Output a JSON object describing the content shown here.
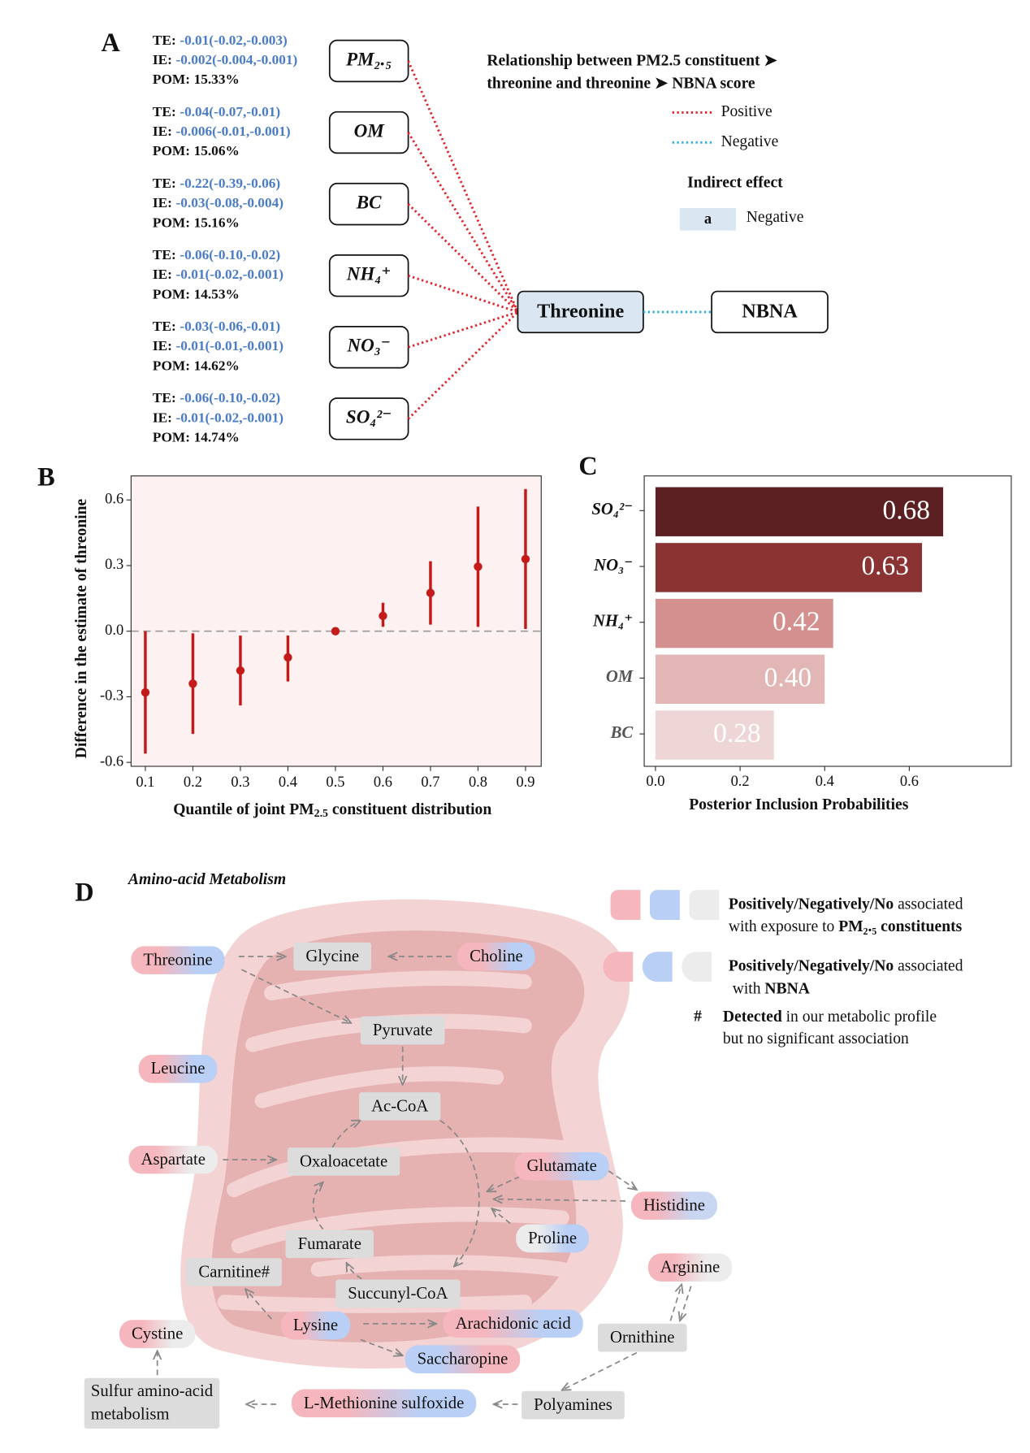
{
  "panel_labels": [
    "A",
    "B",
    "C",
    "D"
  ],
  "panel_a": {
    "rows": [
      {
        "node": "PM₂.₅",
        "te": "-0.01(-0.02,-0.003)",
        "ie": "-0.002(-0.004,-0.001)",
        "pom": "15.33%"
      },
      {
        "node": "OM",
        "te": "-0.04(-0.07,-0.01)",
        "ie": "-0.006(-0.01,-0.001)",
        "pom": "15.06%"
      },
      {
        "node": "BC",
        "te": "-0.22(-0.39,-0.06)",
        "ie": "-0.03(-0.08,-0.004)",
        "pom": "15.16%"
      },
      {
        "node": "NH₄⁺",
        "te": "-0.06(-0.10,-0.02)",
        "ie": "-0.01(-0.02,-0.001)",
        "pom": "14.53%"
      },
      {
        "node": "NO₃⁻",
        "te": "-0.03(-0.06,-0.01)",
        "ie": "-0.01(-0.01,-0.001)",
        "pom": "14.62%"
      },
      {
        "node": "SO₄²⁻",
        "te": "-0.06(-0.10,-0.02)",
        "ie": "-0.01(-0.02,-0.001)",
        "pom": "14.74%"
      }
    ],
    "te_label": "TE:",
    "ie_label": "IE:",
    "pom_label": "POM:",
    "mediator": "Threonine",
    "outcome": "NBNA",
    "legend_title": [
      "Relationship between PM2.5 constituent ➤",
      "threonine and threonine ➤ NBNA score"
    ],
    "legend_positive": "Positive",
    "legend_negative": "Negative",
    "positive_color": "#e0242a",
    "negative_color": "#2aaee0",
    "indirect_title": "Indirect effect",
    "indirect_key": "a",
    "indirect_label": "Negative",
    "indirect_color": "#dae6f2"
  },
  "chart_data": [
    {
      "type": "errorbar",
      "x": [
        0.1,
        0.2,
        0.3,
        0.4,
        0.5,
        0.6,
        0.7,
        0.8,
        0.9
      ],
      "values": [
        -0.28,
        -0.24,
        -0.18,
        -0.12,
        0.0,
        0.07,
        0.175,
        0.295,
        0.33
      ],
      "lower": [
        -0.56,
        -0.47,
        -0.34,
        -0.23,
        0.0,
        0.02,
        0.03,
        0.02,
        0.01
      ],
      "upper": [
        0.0,
        -0.01,
        -0.02,
        -0.02,
        0.0,
        0.13,
        0.32,
        0.57,
        0.65
      ],
      "color": "#c41a1a",
      "xlim": [
        0.07,
        0.933
      ],
      "ylim": [
        -0.618,
        0.71
      ],
      "xticks": [
        0.1,
        0.2,
        0.3,
        0.4,
        0.5,
        0.6,
        0.7,
        0.8,
        0.9
      ],
      "yticks": [
        -0.6,
        -0.3,
        {
          "value": 0,
          "label": "0.0"
        },
        0.3,
        0.6
      ],
      "reference_line": 0,
      "y_label": "Difference in the estimate of threonine",
      "x_label": [
        "Quantile of joint PM",
        "2.5",
        " constituent distribution"
      ]
    },
    {
      "type": "hbar",
      "categories": [
        "SO₄²⁻",
        "NO₃⁻",
        "NH₄⁺",
        "OM",
        "BC"
      ],
      "values": [
        0.68,
        0.63,
        0.42,
        0.4,
        0.28
      ],
      "value_labels": [
        "0.68",
        "0.63",
        "0.42",
        "0.40",
        "0.28"
      ],
      "colors": [
        "#5c1f22",
        "#8b3232",
        "#d48f8f",
        "#e3b6b6",
        "#efd6d6"
      ],
      "xlim": [
        -0.0266,
        0.841
      ],
      "xticks": [
        {
          "value": 0,
          "label": "0.0"
        },
        0.2,
        0.4,
        0.6
      ],
      "x_label": "Posterior Inclusion Probabilities"
    }
  ],
  "panel_d": {
    "title": "Amino-acid Metabolism",
    "nodes": [
      {
        "label": "Threonine",
        "fill": [
          "#f5b7bd",
          "#b9cff5"
        ]
      },
      {
        "label": "Glycine",
        "fill": [
          "#dcdcdc"
        ]
      },
      {
        "label": "Choline",
        "fill": [
          "#f5b7bd",
          "#b9cff5"
        ]
      },
      {
        "label": "Pyruvate",
        "fill": [
          "#dcdcdc"
        ]
      },
      {
        "label": "Leucine",
        "fill": [
          "#f5b7bd",
          "#b9cff5"
        ]
      },
      {
        "label": "Ac-CoA",
        "fill": [
          "#dcdcdc"
        ]
      },
      {
        "label": "Aspartate",
        "fill": [
          "#f5b7bd",
          "#ececec"
        ]
      },
      {
        "label": "Oxaloacetate",
        "fill": [
          "#dcdcdc"
        ]
      },
      {
        "label": "Glutamate",
        "fill": [
          "#f5b7bd",
          "#b9cff5"
        ]
      },
      {
        "label": "Histidine",
        "fill": [
          "#f5b7bd",
          "#c9d6f2"
        ]
      },
      {
        "label": "Proline",
        "fill": [
          "#ececec",
          "#b9cff5"
        ]
      },
      {
        "label": "Fumarate",
        "fill": [
          "#dcdcdc"
        ]
      },
      {
        "label": "Carnitine#",
        "fill": [
          "#dcdcdc"
        ]
      },
      {
        "label": "Succunyl-CoA",
        "fill": [
          "#dcdcdc"
        ]
      },
      {
        "label": "Arginine",
        "fill": [
          "#f5b7bd",
          "#ececec"
        ]
      },
      {
        "label": "Cystine",
        "fill": [
          "#f5b7bd",
          "#ececec"
        ]
      },
      {
        "label": "Lysine",
        "fill": [
          "#f5b7bd",
          "#b9cff5"
        ]
      },
      {
        "label": "Arachidonic acid",
        "fill": [
          "#f5b7bd",
          "#b9cff5"
        ]
      },
      {
        "label": "Ornithine",
        "fill": [
          "#dcdcdc"
        ]
      },
      {
        "label": "Saccharopine",
        "fill": [
          "#b9cff5",
          "#f5b7bd"
        ]
      },
      {
        "label": [
          "Sulfur amino-acid",
          "metabolism"
        ],
        "fill": [
          "#dcdcdc"
        ]
      },
      {
        "label": "L-Methionine sulfoxide",
        "fill": [
          "#f5b7bd",
          "#b9cff5"
        ]
      },
      {
        "label": "Polyamines",
        "fill": [
          "#dcdcdc"
        ]
      }
    ],
    "legend": [
      {
        "bold": "Positively/Negatively/No",
        "text": " associated",
        "line2": "with exposure to ",
        "line2_bold": "PM₂.₅ constituents"
      },
      {
        "bold": "Positively/Negatively/No",
        "text": " associated",
        "line2": " with ",
        "line2_bold": "NBNA"
      }
    ],
    "note": {
      "symbol": "#",
      "bold": "Detected",
      "text": " in our metabolic profile",
      "line2": "but no significant association"
    }
  }
}
